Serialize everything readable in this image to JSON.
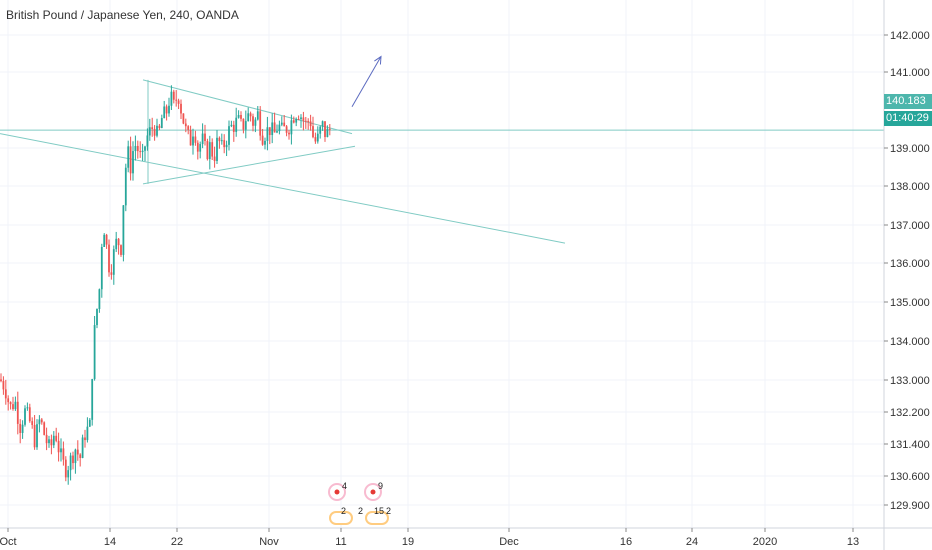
{
  "header": {
    "symbol_title": "British Pound / Japanese Yen, 240, OANDA"
  },
  "price_axis": {
    "ticks": [
      "142.000",
      "141.000",
      "139.000",
      "138.000",
      "137.000",
      "136.000",
      "135.000",
      "134.000",
      "133.000",
      "132.200",
      "131.400",
      "130.600",
      "129.900"
    ],
    "current_price": "140.183",
    "countdown": "01:40:29"
  },
  "time_axis": {
    "ticks": [
      "Oct",
      "14",
      "22",
      "Nov",
      "11",
      "19",
      "Dec",
      "16",
      "24",
      "2020",
      "13"
    ]
  },
  "events": {
    "top": [
      "4",
      "9"
    ],
    "bottom": [
      "2",
      "2",
      "15",
      "2"
    ]
  },
  "colors": {
    "up": "#26a69a",
    "down": "#ef5350",
    "trendline": "#80cbc4",
    "arrow": "#5c6bc0",
    "grid": "#f0f3fa"
  },
  "chart_data": {
    "type": "candlestick",
    "title": "British Pound / Japanese Yen, 240, OANDA",
    "timeframe": "240",
    "source": "OANDA",
    "ylim": [
      129.7,
      142.8
    ],
    "current_price": 140.183,
    "path_points": [
      [
        0,
        133.2
      ],
      [
        5,
        133.0
      ],
      [
        10,
        132.4
      ],
      [
        15,
        132.6
      ],
      [
        20,
        131.9
      ],
      [
        25,
        132.3
      ],
      [
        30,
        132.0
      ],
      [
        35,
        131.5
      ],
      [
        40,
        132.1
      ],
      [
        45,
        131.6
      ],
      [
        50,
        131.2
      ],
      [
        55,
        131.8
      ],
      [
        60,
        131.1
      ],
      [
        65,
        130.7
      ],
      [
        70,
        130.9
      ],
      [
        75,
        131.3
      ],
      [
        80,
        131.0
      ],
      [
        85,
        131.7
      ],
      [
        90,
        131.9
      ],
      [
        93,
        134.0
      ],
      [
        96,
        135.0
      ],
      [
        99,
        135.5
      ],
      [
        103,
        137.7
      ],
      [
        107,
        136.8
      ],
      [
        110,
        136.2
      ],
      [
        113,
        136.6
      ],
      [
        117,
        137.1
      ],
      [
        121,
        136.9
      ],
      [
        125,
        139.0
      ],
      [
        128,
        139.5
      ],
      [
        131,
        139.1
      ],
      [
        134,
        139.8
      ],
      [
        138,
        139.6
      ],
      [
        142,
        139.2
      ],
      [
        146,
        139.9
      ],
      [
        150,
        140.1
      ],
      [
        154,
        140.3
      ],
      [
        158,
        139.9
      ],
      [
        162,
        140.5
      ],
      [
        166,
        140.6
      ],
      [
        170,
        141.1
      ],
      [
        174,
        140.8
      ],
      [
        178,
        141.2
      ],
      [
        182,
        140.6
      ],
      [
        186,
        140.1
      ],
      [
        190,
        139.8
      ],
      [
        194,
        140.3
      ],
      [
        198,
        139.6
      ],
      [
        202,
        139.9
      ],
      [
        206,
        139.5
      ],
      [
        210,
        139.7
      ],
      [
        214,
        139.4
      ],
      [
        218,
        139.9
      ],
      [
        222,
        139.6
      ],
      [
        226,
        139.9
      ],
      [
        230,
        140.2
      ],
      [
        234,
        140.3
      ],
      [
        238,
        140.4
      ],
      [
        242,
        140.2
      ],
      [
        246,
        140.5
      ],
      [
        250,
        140.6
      ],
      [
        254,
        140.3
      ],
      [
        258,
        140.6
      ],
      [
        262,
        140.0
      ],
      [
        266,
        140.1
      ],
      [
        270,
        140.2
      ],
      [
        274,
        140.0
      ],
      [
        278,
        140.3
      ],
      [
        282,
        140.1
      ],
      [
        286,
        140.2
      ],
      [
        290,
        140.3
      ],
      [
        294,
        140.6
      ],
      [
        298,
        140.7
      ],
      [
        302,
        140.5
      ],
      [
        306,
        140.3
      ],
      [
        310,
        140.5
      ],
      [
        314,
        139.8
      ],
      [
        318,
        139.9
      ],
      [
        322,
        140.3
      ],
      [
        326,
        140.0
      ],
      [
        330,
        140.18
      ]
    ],
    "trendlines": [
      {
        "from": [
          0,
          140.05
        ],
        "to": [
          565,
          137.0
        ]
      },
      {
        "from": [
          143,
          141.55
        ],
        "to": [
          352,
          140.05
        ]
      },
      {
        "from": [
          143,
          138.65
        ],
        "to": [
          355,
          139.7
        ]
      },
      {
        "from": [
          0,
          140.15
        ],
        "to": [
          884,
          140.15
        ]
      }
    ],
    "vertical_line": {
      "x": 148,
      "y_range": [
        138.65,
        141.55
      ]
    },
    "projection_arrow": {
      "from": [
        352,
        140.8
      ],
      "to": [
        381,
        142.2
      ]
    }
  }
}
